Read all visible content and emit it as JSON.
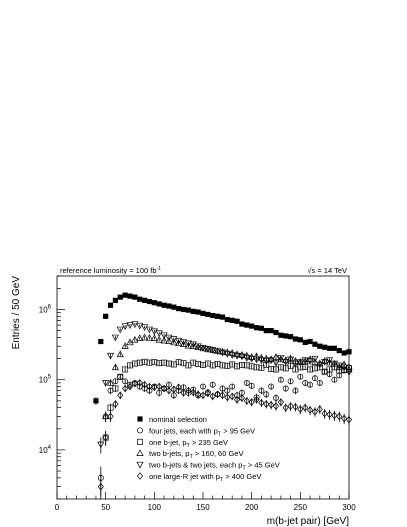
{
  "chart_data": {
    "type": "scatter",
    "xlabel": "m(b-jet pair) [GeV]",
    "ylabel": "Entries / 50 GeV",
    "xlim": [
      0,
      300
    ],
    "ylim": [
      2000,
      3000000
    ],
    "yscale": "log",
    "grid": false,
    "legend_position": "bottom-center",
    "annotations": {
      "luminosity_prefix": "reference luminosity = 100 fb",
      "luminosity_sup": "-1",
      "energy_sqrt": "√s",
      "energy_value": "= 14 TeV"
    },
    "x_ticks": [
      0,
      50,
      100,
      150,
      200,
      250,
      300
    ],
    "x_tick_labels": [
      "0",
      "50",
      "100",
      "150",
      "200",
      "250",
      "300"
    ],
    "y_tick_labels": [
      {
        "value": 10000,
        "base": "10",
        "exp": "4"
      },
      {
        "value": 100000,
        "base": "10",
        "exp": "5"
      },
      {
        "value": 1000000,
        "base": "10",
        "exp": "6"
      }
    ],
    "series": [
      {
        "name": "nominal selection",
        "label_parts": [
          "nominal selection"
        ],
        "marker": "square-filled",
        "x": [
          40,
          45,
          50,
          55,
          60,
          65,
          70,
          75,
          80,
          85,
          90,
          95,
          100,
          105,
          110,
          115,
          120,
          125,
          130,
          135,
          140,
          145,
          150,
          155,
          160,
          165,
          170,
          175,
          180,
          185,
          190,
          195,
          200,
          205,
          210,
          215,
          220,
          225,
          230,
          235,
          240,
          245,
          250,
          255,
          260,
          265,
          270,
          275,
          280,
          285,
          290,
          295,
          300
        ],
        "y": [
          50000,
          350000,
          800000,
          1150000,
          1350000,
          1500000,
          1600000,
          1550000,
          1500000,
          1400000,
          1350000,
          1300000,
          1250000,
          1200000,
          1150000,
          1120000,
          1080000,
          1030000,
          1000000,
          980000,
          940000,
          920000,
          880000,
          850000,
          820000,
          800000,
          780000,
          720000,
          700000,
          680000,
          620000,
          600000,
          580000,
          550000,
          540000,
          500000,
          500000,
          470000,
          430000,
          420000,
          410000,
          380000,
          370000,
          340000,
          350000,
          320000,
          300000,
          290000,
          280000,
          280000,
          260000,
          240000,
          250000
        ]
      },
      {
        "name": "four jets, each with pT > 95 GeV",
        "label_parts": [
          "four jets, each with p",
          "T",
          " > 95 GeV"
        ],
        "marker": "circle-open",
        "x": [
          45,
          50,
          55,
          60,
          65,
          70,
          75,
          80,
          85,
          90,
          95,
          100,
          105,
          110,
          115,
          120,
          125,
          130,
          135,
          140,
          145,
          150,
          155,
          160,
          165,
          170,
          175,
          180,
          185,
          190,
          195,
          200,
          205,
          210,
          215,
          220,
          225,
          230,
          235,
          240,
          245,
          250,
          255,
          260,
          265,
          270,
          275,
          280,
          285,
          290,
          295,
          300
        ],
        "y": [
          4000,
          30000,
          70000,
          95000,
          110000,
          95000,
          85000,
          90000,
          80000,
          75000,
          70000,
          80000,
          65000,
          75000,
          85000,
          60000,
          70000,
          78000,
          65000,
          72000,
          60000,
          80000,
          66000,
          85000,
          62000,
          75000,
          70000,
          80000,
          60000,
          65000,
          90000,
          82000,
          56000,
          70000,
          62000,
          80000,
          55000,
          100000,
          75000,
          95000,
          70000,
          110000,
          90000,
          85000,
          105000,
          90000,
          130000,
          120000,
          100000,
          115000,
          135000,
          150000
        ]
      },
      {
        "name": "one b-jet, pT > 235 GeV",
        "label_parts": [
          "one b-jet, p",
          "T",
          " > 235 GeV"
        ],
        "marker": "square-open",
        "x": [
          50,
          55,
          60,
          65,
          70,
          75,
          80,
          85,
          90,
          95,
          100,
          105,
          110,
          115,
          120,
          125,
          130,
          135,
          140,
          145,
          150,
          155,
          160,
          165,
          170,
          175,
          180,
          185,
          190,
          195,
          200,
          205,
          210,
          215,
          220,
          225,
          230,
          235,
          240,
          245,
          250,
          255,
          260,
          265,
          270,
          275,
          280,
          285,
          290,
          295,
          300
        ],
        "y": [
          15000,
          40000,
          75000,
          110000,
          140000,
          160000,
          170000,
          175000,
          180000,
          175000,
          178000,
          172000,
          175000,
          170000,
          165000,
          178000,
          172000,
          160000,
          175000,
          168000,
          162000,
          170000,
          160000,
          168000,
          160000,
          158000,
          165000,
          155000,
          162000,
          160000,
          155000,
          150000,
          148000,
          162000,
          142000,
          140000,
          150000,
          145000,
          158000,
          140000,
          150000,
          152000,
          140000,
          145000,
          150000,
          130000,
          140000,
          150000,
          135000,
          138000,
          145000
        ]
      },
      {
        "name": "two b-jets, pT > 160, 60 GeV",
        "label_parts": [
          "two b-jets, p",
          "T",
          " > 160, 60 GeV"
        ],
        "marker": "triangle-up-open",
        "x": [
          50,
          55,
          60,
          65,
          70,
          75,
          80,
          85,
          90,
          95,
          100,
          105,
          110,
          115,
          120,
          125,
          130,
          135,
          140,
          145,
          150,
          155,
          160,
          165,
          170,
          175,
          180,
          185,
          190,
          195,
          200,
          205,
          210,
          215,
          220,
          225,
          230,
          235,
          240,
          245,
          250,
          255,
          260,
          265,
          270,
          275,
          280,
          285,
          290,
          295,
          300
        ],
        "y": [
          30000,
          90000,
          150000,
          230000,
          300000,
          340000,
          370000,
          390000,
          400000,
          395000,
          390000,
          370000,
          360000,
          355000,
          340000,
          330000,
          320000,
          305000,
          300000,
          290000,
          280000,
          270000,
          265000,
          255000,
          250000,
          245000,
          240000,
          230000,
          225000,
          220000,
          210000,
          215000,
          205000,
          200000,
          195000,
          210000,
          195000,
          190000,
          200000,
          185000,
          178000,
          182000,
          195000,
          178000,
          170000,
          185000,
          175000,
          168000,
          150000,
          165000,
          140000
        ]
      },
      {
        "name": "two b-jets & two jets, each pT > 45 GeV",
        "label_parts": [
          "two b-jets & two jets, each p",
          "T",
          " > 45 GeV"
        ],
        "marker": "triangle-down-open",
        "x": [
          45,
          50,
          55,
          60,
          65,
          70,
          75,
          80,
          85,
          90,
          95,
          100,
          105,
          110,
          115,
          120,
          125,
          130,
          135,
          140,
          145,
          150,
          155,
          160,
          165,
          170,
          175,
          180,
          185,
          190,
          195,
          200,
          205,
          210,
          215,
          220,
          225,
          230,
          235,
          240,
          245,
          250,
          255,
          260,
          265,
          270,
          275,
          280,
          285,
          290,
          295,
          300
        ],
        "y": [
          12000,
          90000,
          220000,
          400000,
          520000,
          580000,
          600000,
          620000,
          590000,
          560000,
          520000,
          490000,
          460000,
          430000,
          400000,
          380000,
          360000,
          345000,
          330000,
          320000,
          300000,
          285000,
          275000,
          265000,
          255000,
          245000,
          235000,
          225000,
          220000,
          215000,
          205000,
          200000,
          195000,
          190000,
          185000,
          190000,
          175000,
          205000,
          180000,
          195000,
          170000,
          178000,
          190000,
          185000,
          200000,
          165000,
          180000,
          190000,
          170000,
          160000,
          150000,
          130000
        ]
      },
      {
        "name": "one large-R jet with pT > 400 GeV",
        "label_parts": [
          "one large-R jet with p",
          "T",
          " > 400 GeV"
        ],
        "marker": "diamond-open",
        "x": [
          45,
          50,
          55,
          60,
          65,
          70,
          75,
          80,
          85,
          90,
          95,
          100,
          105,
          110,
          115,
          120,
          125,
          130,
          135,
          140,
          145,
          150,
          155,
          160,
          165,
          170,
          175,
          180,
          185,
          190,
          195,
          200,
          205,
          210,
          215,
          220,
          225,
          230,
          235,
          240,
          245,
          250,
          255,
          260,
          265,
          270,
          275,
          280,
          285,
          290,
          295,
          300
        ],
        "y": [
          3000,
          15000,
          30000,
          45000,
          60000,
          75000,
          80000,
          88000,
          90000,
          85000,
          80000,
          78000,
          80000,
          75000,
          70000,
          73000,
          78000,
          65000,
          70000,
          66000,
          62000,
          60000,
          64000,
          58000,
          62000,
          60000,
          56000,
          58000,
          52000,
          55000,
          50000,
          48000,
          52000,
          47000,
          45000,
          44000,
          42000,
          48000,
          40000,
          42000,
          41000,
          38000,
          40000,
          37000,
          35000,
          38000,
          33000,
          32000,
          31000,
          30000,
          28000,
          27000
        ]
      }
    ]
  }
}
